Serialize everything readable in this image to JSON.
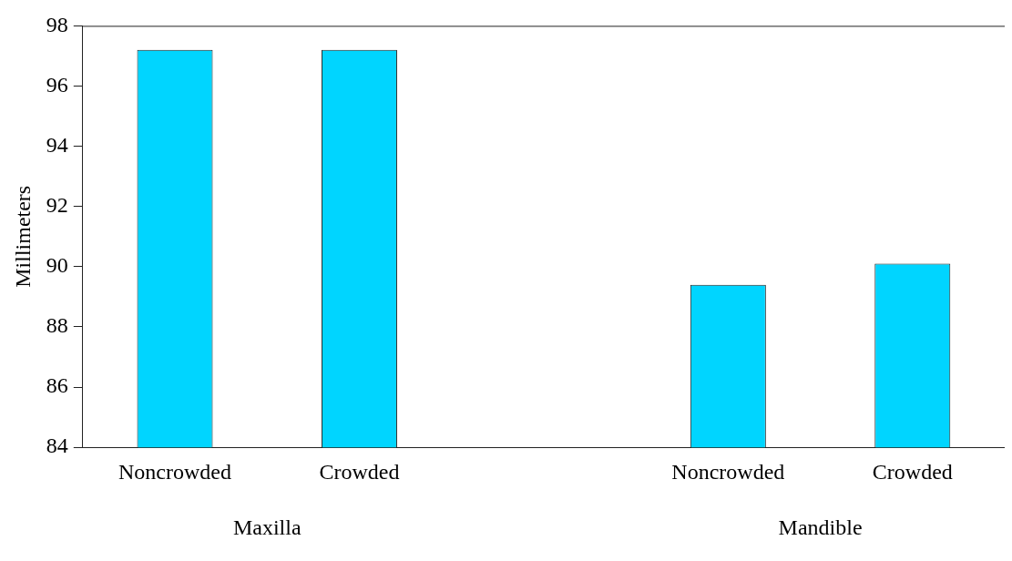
{
  "chart_data": {
    "type": "bar",
    "ylabel": "Millimeters",
    "categories": [
      "Noncrowded",
      "Crowded",
      null,
      "Noncrowded",
      "Crowded"
    ],
    "values": [
      97.2,
      97.2,
      null,
      89.4,
      90.1
    ],
    "color": "#00d5ff",
    "ylim": [
      84,
      98
    ],
    "yticks": [
      84,
      86,
      88,
      90,
      92,
      94,
      96,
      98
    ],
    "annotations": [
      "Maxilla",
      "Mandible"
    ],
    "grid": false,
    "legend": false
  }
}
